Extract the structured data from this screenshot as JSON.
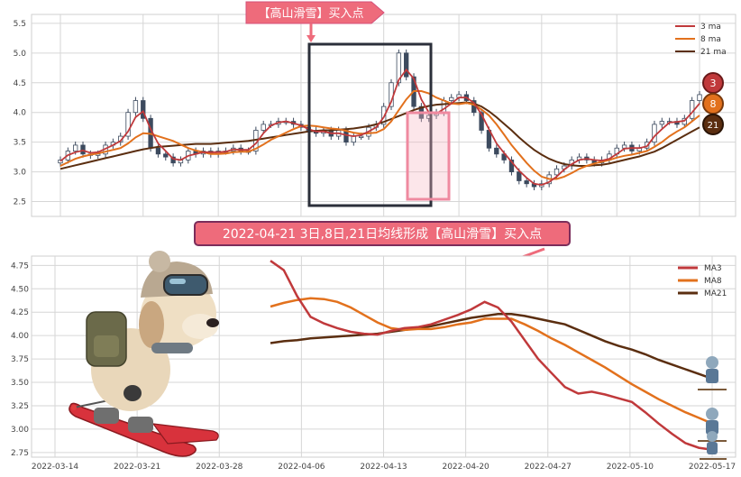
{
  "banner_top": "【高山滑雪】买入点",
  "banner_mid": "2022-04-21 3日,8日,21日均线形成【高山滑雪】买入点",
  "badges": [
    "3",
    "8",
    "21"
  ],
  "colors": {
    "ma3": "#c0393b",
    "ma8": "#e2711d",
    "ma21": "#5b2e10",
    "banner_fill": "#ee6b7b",
    "banner_border": "#7b2d5b",
    "box_dark": "#2b2f3a",
    "box_pink": "#f0a0b0",
    "candle_up": "#ffffff",
    "candle_down": "#3c4a5e",
    "grid": "#d6d6d6"
  },
  "chart_data": [
    {
      "type": "candlestick",
      "legend": [
        "3 ma",
        "8 ma",
        "21 ma"
      ],
      "legend_position": "top-right",
      "ylim": [
        2.25,
        5.65
      ],
      "yticks": [
        "2.5",
        "3.0",
        "3.5",
        "4.0",
        "4.5",
        "5.0",
        "5.5"
      ],
      "grid": true,
      "n_days": 86,
      "close": [
        3.2,
        3.35,
        3.45,
        3.3,
        3.28,
        3.3,
        3.45,
        3.5,
        3.6,
        4.0,
        4.2,
        3.9,
        3.4,
        3.3,
        3.25,
        3.15,
        3.2,
        3.35,
        3.3,
        3.35,
        3.3,
        3.35,
        3.35,
        3.4,
        3.35,
        3.35,
        3.7,
        3.8,
        3.8,
        3.85,
        3.85,
        3.8,
        3.75,
        3.7,
        3.65,
        3.7,
        3.6,
        3.7,
        3.5,
        3.6,
        3.6,
        3.75,
        3.8,
        4.1,
        4.5,
        5.0,
        4.6,
        4.1,
        3.9,
        3.95,
        4.0,
        4.2,
        4.25,
        4.3,
        4.2,
        4.0,
        3.7,
        3.4,
        3.3,
        3.2,
        3.0,
        2.85,
        2.8,
        2.75,
        2.8,
        2.95,
        3.05,
        3.1,
        3.2,
        3.25,
        3.2,
        3.15,
        3.2,
        3.3,
        3.4,
        3.45,
        3.35,
        3.4,
        3.5,
        3.8,
        3.85,
        3.85,
        3.8,
        3.9,
        4.2,
        4.3
      ],
      "ma3": [
        3.18,
        3.28,
        3.33,
        3.36,
        3.32,
        3.33,
        3.39,
        3.45,
        3.52,
        3.68,
        3.92,
        4.02,
        3.72,
        3.48,
        3.35,
        3.22,
        3.2,
        3.27,
        3.3,
        3.33,
        3.33,
        3.33,
        3.34,
        3.38,
        3.37,
        3.37,
        3.48,
        3.65,
        3.78,
        3.83,
        3.85,
        3.82,
        3.78,
        3.72,
        3.68,
        3.68,
        3.65,
        3.65,
        3.62,
        3.6,
        3.62,
        3.68,
        3.75,
        3.92,
        4.18,
        4.55,
        4.72,
        4.57,
        4.22,
        4.0,
        3.98,
        4.06,
        4.15,
        4.25,
        4.25,
        4.16,
        3.97,
        3.72,
        3.48,
        3.32,
        3.17,
        3.02,
        2.9,
        2.8,
        2.78,
        2.83,
        2.92,
        3.04,
        3.13,
        3.2,
        3.22,
        3.2,
        3.19,
        3.22,
        3.3,
        3.39,
        3.4,
        3.4,
        3.43,
        3.6,
        3.72,
        3.83,
        3.84,
        3.86,
        4.0,
        4.15
      ],
      "ma8": [
        3.1,
        3.16,
        3.22,
        3.26,
        3.29,
        3.31,
        3.34,
        3.37,
        3.4,
        3.48,
        3.58,
        3.65,
        3.64,
        3.6,
        3.56,
        3.52,
        3.46,
        3.4,
        3.36,
        3.33,
        3.3,
        3.3,
        3.31,
        3.33,
        3.34,
        3.34,
        3.39,
        3.46,
        3.54,
        3.6,
        3.66,
        3.72,
        3.77,
        3.78,
        3.77,
        3.75,
        3.73,
        3.72,
        3.69,
        3.66,
        3.64,
        3.65,
        3.66,
        3.72,
        3.85,
        4.04,
        4.22,
        4.36,
        4.36,
        4.32,
        4.25,
        4.2,
        4.15,
        4.14,
        4.16,
        4.13,
        4.05,
        3.95,
        3.8,
        3.63,
        3.45,
        3.3,
        3.15,
        3.02,
        2.92,
        2.88,
        2.88,
        2.92,
        2.98,
        3.05,
        3.1,
        3.14,
        3.17,
        3.2,
        3.24,
        3.27,
        3.29,
        3.32,
        3.35,
        3.42,
        3.5,
        3.6,
        3.68,
        3.75,
        3.85,
        3.95
      ],
      "ma21": [
        3.05,
        3.08,
        3.11,
        3.14,
        3.17,
        3.2,
        3.23,
        3.26,
        3.29,
        3.32,
        3.35,
        3.38,
        3.4,
        3.42,
        3.43,
        3.44,
        3.45,
        3.46,
        3.47,
        3.47,
        3.47,
        3.48,
        3.49,
        3.5,
        3.51,
        3.52,
        3.54,
        3.56,
        3.58,
        3.6,
        3.62,
        3.64,
        3.66,
        3.68,
        3.69,
        3.7,
        3.7,
        3.71,
        3.72,
        3.73,
        3.75,
        3.77,
        3.8,
        3.84,
        3.89,
        3.94,
        3.99,
        4.04,
        4.08,
        4.11,
        4.13,
        4.14,
        4.15,
        4.16,
        4.17,
        4.15,
        4.1,
        4.02,
        3.92,
        3.81,
        3.7,
        3.58,
        3.47,
        3.37,
        3.29,
        3.22,
        3.17,
        3.13,
        3.11,
        3.1,
        3.1,
        3.11,
        3.12,
        3.14,
        3.17,
        3.2,
        3.23,
        3.26,
        3.3,
        3.34,
        3.4,
        3.47,
        3.54,
        3.61,
        3.68,
        3.75
      ]
    },
    {
      "type": "line",
      "series": [
        {
          "name": "MA3",
          "values": [
            4.8,
            4.7,
            4.42,
            4.2,
            4.13,
            4.08,
            4.04,
            4.02,
            4.01,
            4.05,
            4.08,
            4.09,
            4.12,
            4.17,
            4.22,
            4.28,
            4.36,
            4.3,
            4.15,
            3.95,
            3.75,
            3.6,
            3.45,
            3.38,
            3.4,
            3.37,
            3.33,
            3.29,
            3.18,
            3.06,
            2.95,
            2.85,
            2.8,
            2.78
          ]
        },
        {
          "name": "MA8",
          "values": [
            4.31,
            4.35,
            4.38,
            4.4,
            4.39,
            4.36,
            4.3,
            4.22,
            4.14,
            4.08,
            4.06,
            4.07,
            4.07,
            4.09,
            4.12,
            4.14,
            4.18,
            4.18,
            4.18,
            4.12,
            4.05,
            3.97,
            3.9,
            3.82,
            3.74,
            3.66,
            3.57,
            3.48,
            3.4,
            3.32,
            3.25,
            3.18,
            3.12,
            3.06
          ]
        },
        {
          "name": "MA21",
          "values": [
            3.92,
            3.94,
            3.95,
            3.97,
            3.98,
            3.99,
            4.0,
            4.01,
            4.02,
            4.04,
            4.06,
            4.08,
            4.1,
            4.13,
            4.16,
            4.19,
            4.21,
            4.23,
            4.23,
            4.21,
            4.18,
            4.15,
            4.12,
            4.06,
            4.0,
            3.94,
            3.89,
            3.85,
            3.8,
            3.74,
            3.69,
            3.64,
            3.59,
            3.54
          ]
        },
        {
          "name": "",
          "values": []
        }
      ],
      "legend_position": "top-right",
      "ylim": [
        2.7,
        4.85
      ],
      "yticks": [
        "2.75",
        "3.00",
        "3.25",
        "3.50",
        "3.75",
        "4.00",
        "4.25",
        "4.50",
        "4.75"
      ],
      "xticks": [
        "2022-03-14",
        "2022-03-21",
        "2022-03-28",
        "2022-04-06",
        "2022-04-13",
        "2022-04-20",
        "2022-04-27",
        "2022-05-10",
        "2022-05-17"
      ],
      "grid": true
    }
  ]
}
